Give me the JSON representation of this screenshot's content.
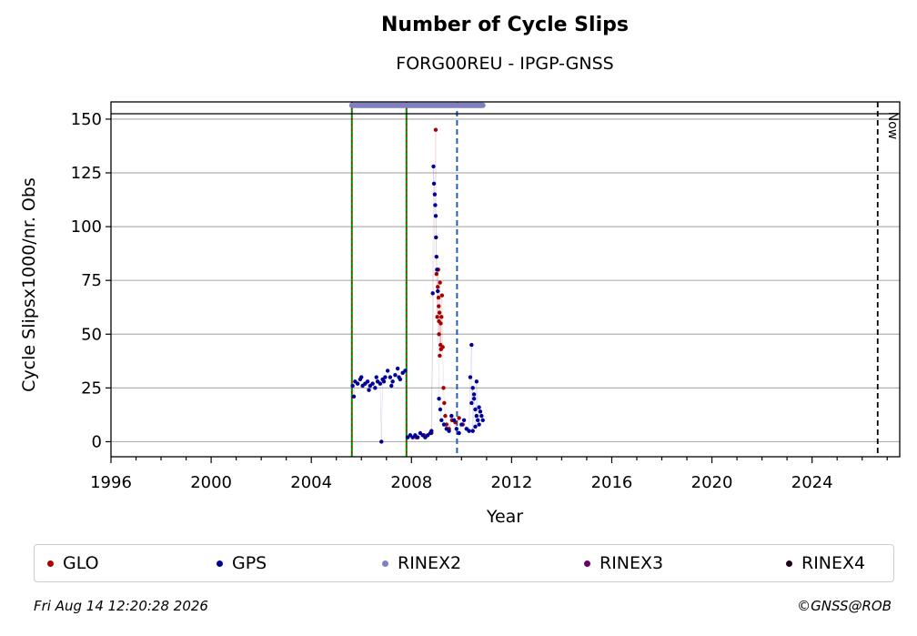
{
  "chart_data": {
    "type": "scatter",
    "title": "Number of Cycle Slips",
    "subtitle": "FORG00REU - IPGP-GNSS",
    "xlabel": "Year",
    "ylabel": "Cycle Slipsx1000/nr. Obs",
    "xlim": [
      1996,
      2027.5
    ],
    "ylim": [
      -7,
      158
    ],
    "x_ticks": [
      1996,
      2000,
      2004,
      2008,
      2012,
      2016,
      2020,
      2024
    ],
    "y_ticks": [
      0,
      25,
      50,
      75,
      100,
      125,
      150
    ],
    "grid": "horizontal",
    "legend_position": "bottom",
    "now_label": "Now",
    "now_year": 2026.62,
    "vertical_lines": [
      {
        "x": 2005.62,
        "style": "green-red-dotted"
      },
      {
        "x": 2007.8,
        "style": "green-red-dotted"
      },
      {
        "x": 2009.82,
        "style": "blue-dashed"
      }
    ],
    "rinex2_bar": {
      "x_start": 2005.62,
      "x_end": 2010.85,
      "y": 156
    },
    "series": [
      {
        "name": "GLO",
        "color": "#aa0000",
        "x": [
          2008.97,
          2009.0,
          2009.03,
          2009.05,
          2009.07,
          2009.09,
          2009.1,
          2009.12,
          2009.14,
          2009.16,
          2009.18,
          2009.2,
          2009.22,
          2009.25,
          2009.28,
          2009.31,
          2009.35,
          2009.4,
          2009.5,
          2009.62,
          2009.75,
          2009.9,
          2010.05,
          2008.2,
          2008.5,
          2008.8,
          2009.1,
          2009.13,
          2009.17,
          2009.08
        ],
        "y": [
          145,
          78,
          58,
          72,
          80,
          63,
          56,
          60,
          74,
          45,
          43,
          58,
          68,
          44,
          25,
          18,
          12,
          8,
          6,
          10,
          9,
          11,
          8,
          2,
          3,
          4,
          50,
          40,
          55,
          67
        ]
      },
      {
        "name": "GPS",
        "color": "#000099",
        "x": [
          2005.65,
          2005.75,
          2005.85,
          2005.95,
          2006.05,
          2006.15,
          2006.25,
          2006.35,
          2006.45,
          2006.55,
          2006.65,
          2006.75,
          2006.85,
          2006.95,
          2007.05,
          2007.15,
          2007.25,
          2007.35,
          2007.45,
          2007.55,
          2007.65,
          2007.75,
          2005.7,
          2006.0,
          2006.3,
          2006.6,
          2006.9,
          2007.2,
          2007.5,
          2006.8,
          2007.85,
          2007.95,
          2008.05,
          2008.15,
          2008.25,
          2008.35,
          2008.45,
          2008.55,
          2008.65,
          2008.75,
          2008.8,
          2008.85,
          2008.88,
          2008.9,
          2008.93,
          2008.95,
          2008.97,
          2008.98,
          2009.0,
          2009.02,
          2009.05,
          2009.1,
          2009.15,
          2009.2,
          2009.3,
          2009.4,
          2009.5,
          2009.6,
          2009.7,
          2009.8,
          2009.9,
          2010.0,
          2010.1,
          2010.2,
          2010.3,
          2010.35,
          2010.4,
          2010.45,
          2010.5,
          2010.55,
          2010.6,
          2010.65,
          2010.7,
          2010.75,
          2010.8,
          2010.85,
          2010.4,
          2010.5,
          2010.6,
          2010.7,
          2010.45,
          2010.55
        ],
        "y": [
          26,
          28,
          27,
          29,
          26,
          27,
          28,
          26,
          27,
          25,
          28,
          27,
          29,
          30,
          33,
          30,
          28,
          31,
          34,
          29,
          32,
          33,
          21,
          30,
          24,
          30,
          28,
          26,
          30,
          0,
          2,
          3,
          2,
          3,
          2,
          4,
          3,
          2,
          3,
          4,
          5,
          69,
          128,
          120,
          115,
          110,
          105,
          95,
          86,
          80,
          70,
          20,
          15,
          10,
          8,
          6,
          5,
          12,
          10,
          6,
          4,
          8,
          10,
          6,
          5,
          30,
          45,
          25,
          20,
          15,
          12,
          10,
          8,
          14,
          12,
          10,
          18,
          22,
          28,
          16,
          5,
          7
        ]
      },
      {
        "name": "RINEX2",
        "color": "#8080c0",
        "x": [],
        "y": []
      },
      {
        "name": "RINEX3",
        "color": "#660066",
        "x": [],
        "y": []
      },
      {
        "name": "RINEX4",
        "color": "#220022",
        "x": [],
        "y": []
      }
    ]
  },
  "footer": {
    "timestamp": "Fri Aug 14 12:20:28 2026",
    "copyright": "©GNSS@ROB"
  }
}
